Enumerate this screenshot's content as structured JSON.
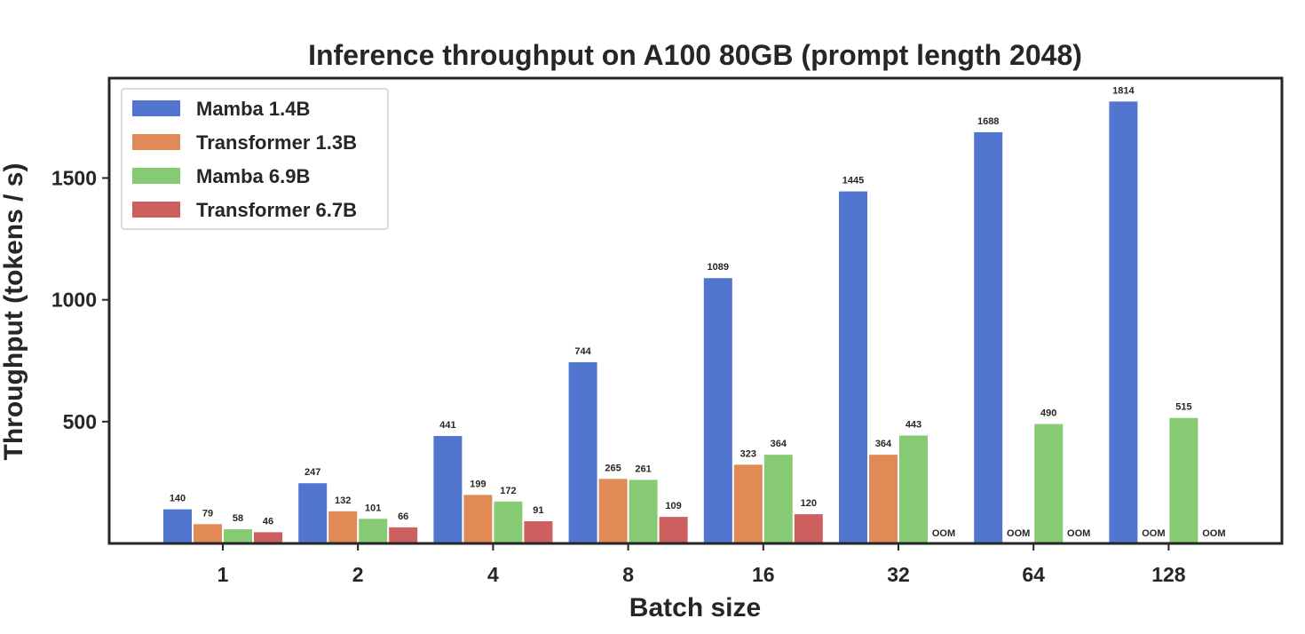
{
  "chart_data": {
    "type": "bar",
    "title": "Inference throughput on A100 80GB (prompt length 2048)",
    "xlabel": "Batch size",
    "ylabel": "Throughput (tokens / s)",
    "categories": [
      "1",
      "2",
      "4",
      "8",
      "16",
      "32",
      "64",
      "128"
    ],
    "ylim": [
      0,
      1910
    ],
    "yticks": [
      500,
      1000,
      1500
    ],
    "legend_position": "top-left",
    "grid": false,
    "oom_label": "OOM",
    "series": [
      {
        "name": "Mamba 1.4B",
        "color": "#5276cf",
        "values": [
          140,
          247,
          441,
          744,
          1089,
          1445,
          1688,
          1814
        ]
      },
      {
        "name": "Transformer 1.3B",
        "color": "#e28a55",
        "values": [
          79,
          132,
          199,
          265,
          323,
          364,
          null,
          null
        ]
      },
      {
        "name": "Mamba 6.9B",
        "color": "#86cb73",
        "values": [
          58,
          101,
          172,
          261,
          364,
          443,
          490,
          515
        ]
      },
      {
        "name": "Transformer 6.7B",
        "color": "#cd5f5f",
        "values": [
          46,
          66,
          91,
          109,
          120,
          null,
          null,
          null
        ]
      }
    ]
  }
}
